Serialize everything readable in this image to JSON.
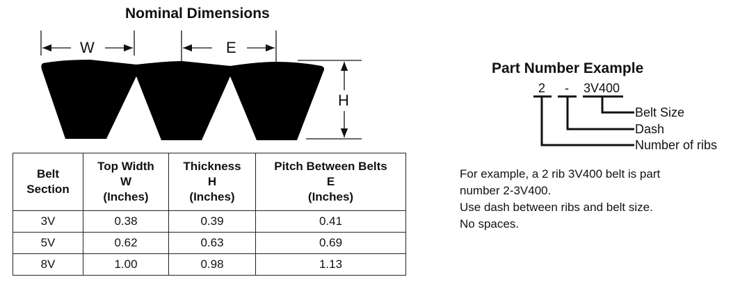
{
  "diagram": {
    "title": "Nominal Dimensions",
    "label_w": "W",
    "label_e": "E",
    "label_h": "H"
  },
  "table": {
    "headers": [
      [
        "Belt",
        "Section"
      ],
      [
        "Top Width",
        "W",
        "(Inches)"
      ],
      [
        "Thickness",
        "H",
        "(Inches)"
      ],
      [
        "Pitch Between Belts",
        "E",
        "(Inches)"
      ]
    ],
    "rows": [
      [
        "3V",
        "0.38",
        "0.39",
        "0.41"
      ],
      [
        "5V",
        "0.62",
        "0.63",
        "0.69"
      ],
      [
        "8V",
        "1.00",
        "0.98",
        "1.13"
      ]
    ]
  },
  "part_number": {
    "title": "Part Number Example",
    "ribs": "2",
    "dash": "-",
    "size": "3V400",
    "label_size": "Belt Size",
    "label_dash": "Dash",
    "label_ribs": "Number of ribs",
    "notes": [
      "For example, a 2 rib 3V400 belt is part",
      "number 2-3V400.",
      "Use dash between ribs and belt size.",
      "No spaces."
    ]
  }
}
